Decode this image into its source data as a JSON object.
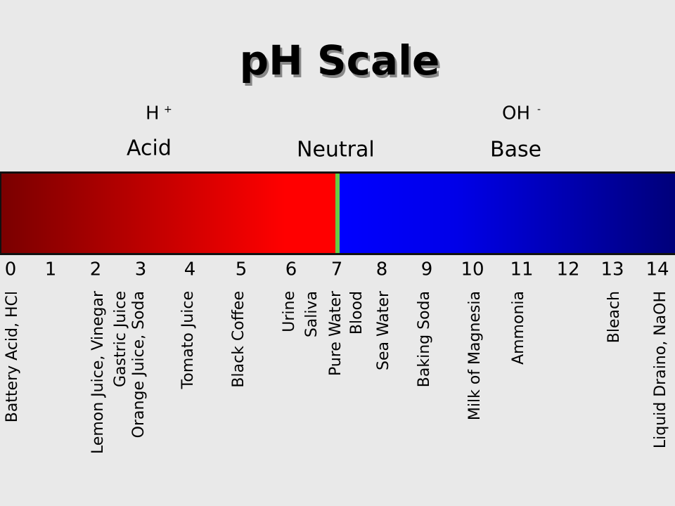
{
  "title": "pH Scale",
  "acid": {
    "ion": "H",
    "charge": "+",
    "label": "Acid"
  },
  "neutral": {
    "label": "Neutral"
  },
  "base": {
    "ion": "OH",
    "charge": "-",
    "label": "Base"
  },
  "scale": [
    "0",
    "1",
    "2",
    "3",
    "4",
    "5",
    "6",
    "7",
    "8",
    "9",
    "10",
    "11",
    "12",
    "13",
    "14"
  ],
  "substances": [
    [
      "Battery Acid, HCl"
    ],
    [
      "Lemon Juice, Vinegar",
      "Gastric Juice",
      "Orange Juice, Soda"
    ],
    [
      "Tomato Juice"
    ],
    [
      "Black Coffee"
    ],
    [
      "Urine",
      "Saliva",
      "Pure Water",
      "Blood"
    ],
    [
      "Sea Water"
    ],
    [
      "Baking Soda"
    ],
    [
      "Milk of Magnesia"
    ],
    [
      "Ammonia"
    ],
    [
      "Bleach"
    ],
    [
      "Liquid Draino, NaOH"
    ]
  ]
}
